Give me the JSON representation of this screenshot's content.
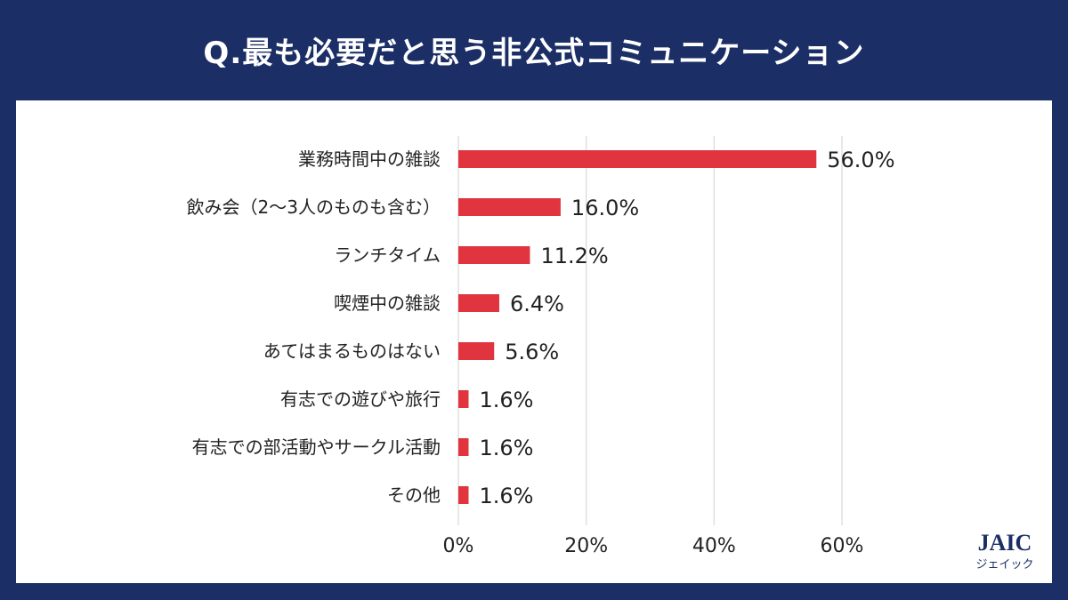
{
  "header": {
    "title": "Q.最も必要だと思う非公式コミュニケーション"
  },
  "brand": {
    "logo_text": "JAIC",
    "logo_kana": "ジェイック",
    "primary_color": "#1b2f66",
    "bar_color": "#e0353f"
  },
  "chart_data": {
    "type": "bar",
    "orientation": "horizontal",
    "title": "Q.最も必要だと思う非公式コミュニケーション",
    "categories": [
      "業務時間中の雑談",
      "飲み会（2～3人のものも含む）",
      "ランチタイム",
      "喫煙中の雑談",
      "あてはまるものはない",
      "有志での遊びや旅行",
      "有志での部活動やサークル活動",
      "その他"
    ],
    "values": [
      56.0,
      16.0,
      11.2,
      6.4,
      5.6,
      1.6,
      1.6,
      1.6
    ],
    "value_labels": [
      "56.0%",
      "16.0%",
      "11.2%",
      "6.4%",
      "5.6%",
      "1.6%",
      "1.6%",
      "1.6%"
    ],
    "xlim": [
      0,
      60
    ],
    "xticks": [
      0,
      20,
      40,
      60
    ],
    "xtick_labels": [
      "0%",
      "20%",
      "40%",
      "60%"
    ],
    "grid": true,
    "legend": "none",
    "xlabel": "",
    "ylabel": ""
  }
}
